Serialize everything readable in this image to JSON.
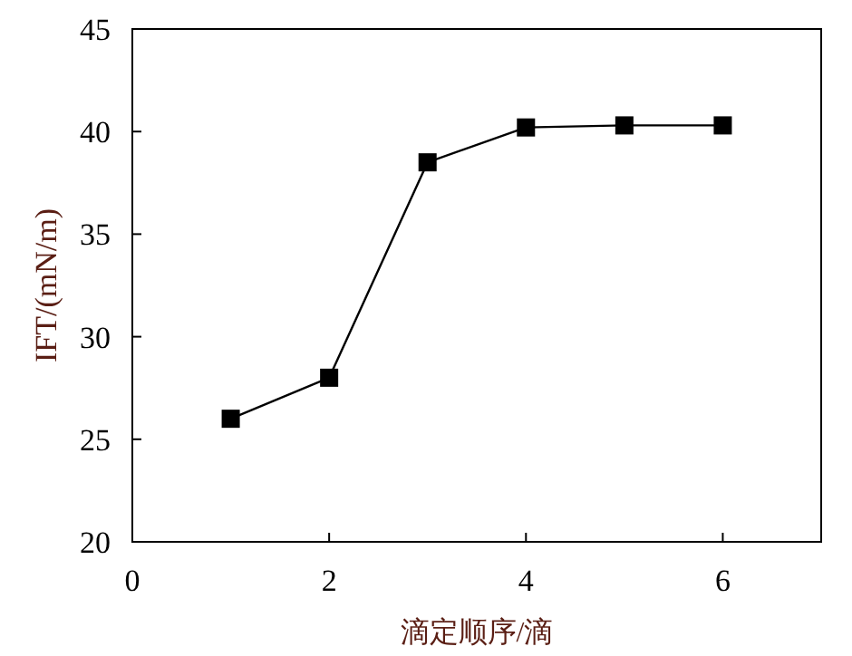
{
  "chart_data": {
    "type": "line",
    "xlabel": "滴定顺序/滴",
    "ylabel": "IFT/(mN/m)",
    "x": [
      1,
      2,
      3,
      4,
      5,
      6
    ],
    "series": [
      {
        "color": "#000000",
        "values": [
          26,
          28,
          38.5,
          40.2,
          40.3,
          40.3
        ]
      }
    ],
    "xlim": [
      0,
      7
    ],
    "xticks": [
      0,
      2,
      4,
      6
    ],
    "ylim": [
      20,
      45
    ],
    "yticks": [
      20,
      25,
      30,
      35,
      40,
      45
    ],
    "marker": "square",
    "line_style": "solid"
  }
}
